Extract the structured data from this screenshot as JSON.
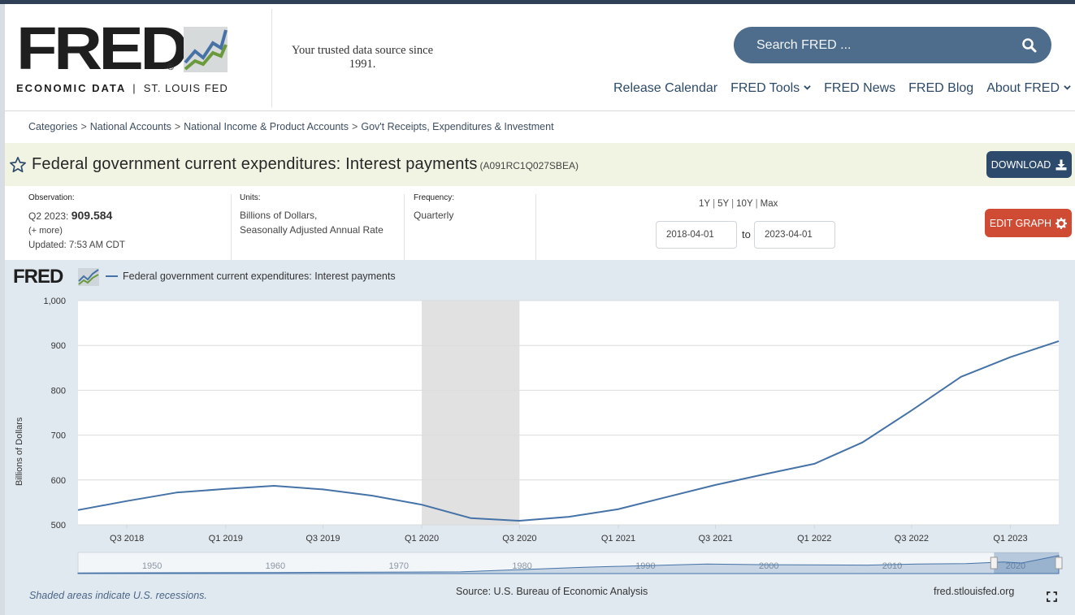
{
  "brand": {
    "logo_word": "FRED",
    "logo_sub_left": "ECONOMIC DATA",
    "logo_sub_sep": "|",
    "logo_sub_right": "ST. LOUIS FED",
    "tagline": "Your trusted data source since 1991."
  },
  "search": {
    "placeholder": "Search FRED ..."
  },
  "nav": [
    {
      "label": "Release Calendar",
      "dropdown": false
    },
    {
      "label": "FRED Tools",
      "dropdown": true
    },
    {
      "label": "FRED News",
      "dropdown": false
    },
    {
      "label": "FRED Blog",
      "dropdown": false
    },
    {
      "label": "About FRED",
      "dropdown": true
    }
  ],
  "breadcrumb": [
    "Categories",
    "National Accounts",
    "National Income & Product Accounts",
    "Gov't Receipts, Expenditures & Investment"
  ],
  "series": {
    "title": "Federal government current expenditures: Interest payments",
    "id": "(A091RC1Q027SBEA)",
    "download_label": "DOWNLOAD"
  },
  "meta": {
    "observation_label": "Observation:",
    "observation_period": "Q2 2023:",
    "observation_value": "909.584",
    "more_label": "(+ more)",
    "updated": "Updated: 7:53 AM CDT",
    "units_label": "Units:",
    "units_line1": "Billions of Dollars,",
    "units_line2": "Seasonally Adjusted Annual Rate",
    "frequency_label": "Frequency:",
    "frequency": "Quarterly"
  },
  "range": {
    "options": [
      "1Y",
      "5Y",
      "10Y",
      "Max"
    ],
    "start": "2018-04-01",
    "end": "2023-04-01",
    "to_label": "to",
    "edit_label": "EDIT GRAPH"
  },
  "graph": {
    "legend": "Federal government current expenditures: Interest payments",
    "recession_note": "Shaded areas indicate U.S. recessions.",
    "source": "Source: U.S. Bureau of Economic Analysis",
    "site": "fred.stlouisfed.org",
    "mini_labels": [
      "1950",
      "1960",
      "1970",
      "1980",
      "1990",
      "2000",
      "2010",
      "2020"
    ]
  },
  "colors": {
    "header_nav": "#2d4a69",
    "search_bg": "#4e6d8c",
    "download_bg": "#2d4a6d",
    "edit_bg": "#cf4b34",
    "series_line": "#4572a7",
    "graph_bg": "#e1e9f0",
    "recession_shade": "#e1e1e1"
  },
  "chart_data": {
    "type": "line",
    "ylabel": "Billions of Dollars",
    "ylim": [
      500,
      1000
    ],
    "yticks": [
      "1,000",
      "900",
      "800",
      "700",
      "600",
      "500"
    ],
    "x_tick_labels": [
      "Q3 2018",
      "Q1 2019",
      "Q3 2019",
      "Q1 2020",
      "Q3 2020",
      "Q1 2021",
      "Q3 2021",
      "Q1 2022",
      "Q3 2022",
      "Q1 2023"
    ],
    "grid": true,
    "recession_shading": [
      "Q1 2020",
      "Q2 2020"
    ],
    "series": [
      {
        "name": "Federal government current expenditures: Interest payments",
        "x": [
          "2018-04-01",
          "2018-07-01",
          "2018-10-01",
          "2019-01-01",
          "2019-04-01",
          "2019-07-01",
          "2019-10-01",
          "2020-01-01",
          "2020-04-01",
          "2020-07-01",
          "2020-10-01",
          "2021-01-01",
          "2021-04-01",
          "2021-07-01",
          "2021-10-01",
          "2022-01-01",
          "2022-04-01",
          "2022-07-01",
          "2022-10-01",
          "2023-01-01",
          "2023-04-01"
        ],
        "values": [
          533,
          553,
          572,
          580,
          587,
          579,
          565,
          545,
          515,
          509,
          518,
          535,
          562,
          589,
          613,
          636,
          684,
          755,
          830,
          874,
          909.584
        ]
      }
    ]
  }
}
